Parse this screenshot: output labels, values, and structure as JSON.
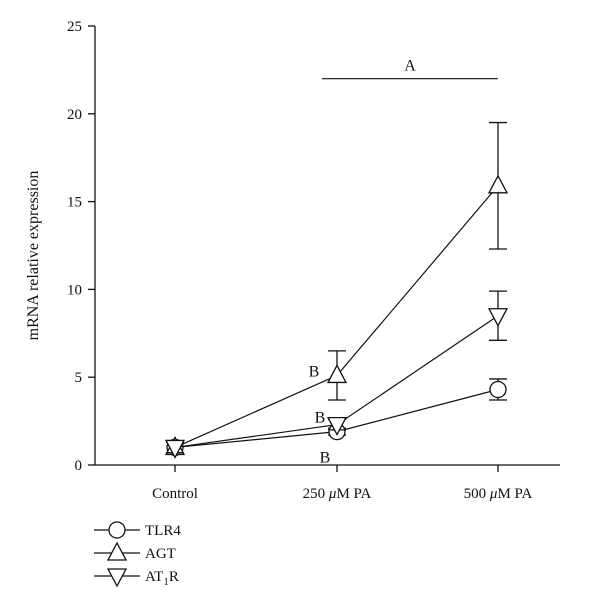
{
  "chart_data": {
    "type": "line",
    "ylabel": "mRNA relative expression",
    "xlabel": "",
    "ylim": [
      0,
      25
    ],
    "yticks": [
      0,
      5,
      10,
      15,
      20,
      25
    ],
    "categories": [
      "Control",
      "250 μM PA",
      "500 μM PA"
    ],
    "category_labels": [
      {
        "pre": "Control",
        "mu": "",
        "post": ""
      },
      {
        "pre": "250 ",
        "mu": "μ",
        "post": "M PA"
      },
      {
        "pre": "500 ",
        "mu": "μ",
        "post": "M PA"
      }
    ],
    "series": [
      {
        "name": "TLR4",
        "legend_base": "TLR4",
        "legend_sub": "",
        "marker": "circle",
        "values": [
          1.0,
          1.9,
          4.3
        ],
        "errors": [
          0.3,
          0.2,
          0.6
        ]
      },
      {
        "name": "AGT",
        "legend_base": "AGT",
        "legend_sub": "",
        "marker": "triangle-up",
        "values": [
          1.0,
          5.1,
          15.9
        ],
        "errors": [
          0.3,
          1.4,
          3.6
        ]
      },
      {
        "name": "AT1R",
        "legend_base": "AT",
        "legend_sub": "1",
        "legend_tail": "R",
        "marker": "triangle-down",
        "values": [
          1.0,
          2.3,
          8.5
        ],
        "errors": [
          0.3,
          0.3,
          1.4
        ]
      }
    ],
    "annotations": [
      {
        "text": "A",
        "type": "bracket",
        "from_category": 1,
        "to_category": 2,
        "y": 22.0
      },
      {
        "text": "B",
        "type": "label",
        "category": 1,
        "series": "AGT"
      },
      {
        "text": "B",
        "type": "label",
        "category": 1,
        "series": "AT1R"
      },
      {
        "text": "B",
        "type": "label",
        "category": 1,
        "series": "TLR4"
      }
    ],
    "grid": false,
    "legend_position": "bottom-left"
  }
}
